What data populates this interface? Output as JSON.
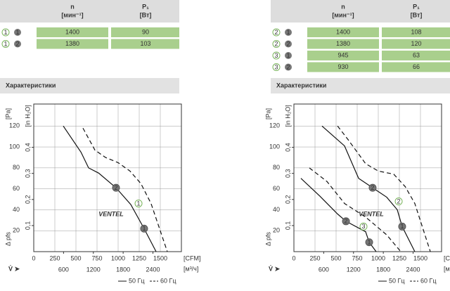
{
  "tables": [
    {
      "headers": [
        {
          "name": "n",
          "unit": "[мин⁻¹]"
        },
        {
          "name": "P₁",
          "unit": "[Вт]"
        }
      ],
      "rows": [
        {
          "mode": "1",
          "point": "1",
          "n": "1400",
          "p": "90"
        },
        {
          "mode": "1",
          "point": "2",
          "n": "1380",
          "p": "103"
        }
      ]
    },
    {
      "headers": [
        {
          "name": "n",
          "unit": "[мин⁻¹]"
        },
        {
          "name": "P₁",
          "unit": "[Вт]"
        }
      ],
      "rows": [
        {
          "mode": "2",
          "point": "1",
          "n": "1400",
          "p": "108"
        },
        {
          "mode": "2",
          "point": "2",
          "n": "1380",
          "p": "120"
        },
        {
          "mode": "3",
          "point": "1",
          "n": "945",
          "p": "63"
        },
        {
          "mode": "3",
          "point": "2",
          "n": "930",
          "p": "66"
        }
      ]
    }
  ],
  "sections": [
    "Характеристики",
    "Характеристики"
  ],
  "charts": [
    {
      "type": "line",
      "watermark": "VENTEL",
      "ylabel": "[Pa]",
      "y2label": "[in H₂O]",
      "pressure_label": "Δ pfs",
      "flow_label": "V̇ ➤",
      "xlabel": "[CFM]",
      "x2label": "[м³/ч]",
      "legend": [
        "50 Гц",
        "60 Гц"
      ],
      "xlim": [
        0,
        1750
      ],
      "xticks": [
        0,
        250,
        500,
        750,
        1000,
        1250,
        1500
      ],
      "x2lim": [
        0,
        2973
      ],
      "x2ticks": [
        600,
        1200,
        1800,
        2400
      ],
      "ylim": [
        0,
        141
      ],
      "yticks": [
        20,
        40,
        60,
        80,
        100,
        120
      ],
      "y2lim": [
        0,
        0.566
      ],
      "y2ticks": [
        {
          "value": 0.1,
          "label": "0,1"
        },
        {
          "value": 0.2,
          "label": "0,2"
        },
        {
          "value": 0.3,
          "label": "0,3"
        },
        {
          "value": 0.4,
          "label": "0,4"
        }
      ],
      "grid": true,
      "series": [
        {
          "style": "solid",
          "x": [
            350,
            560,
            650,
            770,
            975,
            1150,
            1308,
            1450
          ],
          "values": [
            120,
            95,
            80,
            75,
            61,
            45,
            22,
            0
          ]
        },
        {
          "style": "dashed",
          "x": [
            583,
            725,
            850,
            1000,
            1140,
            1270,
            1390,
            1583
          ],
          "values": [
            118,
            97,
            90,
            85,
            77,
            65,
            46,
            0
          ]
        }
      ],
      "markers": [
        {
          "label": "2",
          "x": 975,
          "y": 61,
          "green": false
        },
        {
          "label": "1",
          "x": 1308,
          "y": 22,
          "green": false
        },
        {
          "label": "1",
          "x": 1242,
          "y": 46,
          "green": true
        }
      ]
    },
    {
      "type": "line",
      "watermark": "VENTEL",
      "ylabel": "[Pa]",
      "y2label": "[in H₂O]",
      "pressure_label": "Δ pfs",
      "flow_label": "V̇ ➤",
      "xlabel": "[CFM]",
      "x2label": "[м³/ч]",
      "legend": [
        "50 Гц",
        "60 Гц"
      ],
      "xlim": [
        0,
        1750
      ],
      "xticks": [
        0,
        250,
        500,
        750,
        1000,
        1250,
        1500
      ],
      "x2lim": [
        0,
        2973
      ],
      "x2ticks": [
        600,
        1200,
        1800,
        2400
      ],
      "ylim": [
        0,
        141
      ],
      "yticks": [
        20,
        40,
        60,
        80,
        100,
        120
      ],
      "y2lim": [
        0,
        0.566
      ],
      "y2ticks": [
        {
          "value": 0.1,
          "label": "0,1"
        },
        {
          "value": 0.2,
          "label": "0,2"
        },
        {
          "value": 0.3,
          "label": "0,3"
        },
        {
          "value": 0.4,
          "label": "0,4"
        }
      ],
      "grid": true,
      "series": [
        {
          "style": "solid",
          "x": [
            333,
            600,
            767,
            933,
            1100,
            1225,
            1283,
            1433
          ],
          "values": [
            120,
            101,
            70,
            61,
            52,
            40,
            24,
            0
          ]
        },
        {
          "style": "dashed",
          "x": [
            517,
            642,
            850,
            1000,
            1183,
            1320,
            1433,
            1617
          ],
          "values": [
            120,
            107,
            84,
            77,
            74,
            62,
            46,
            0
          ]
        },
        {
          "style": "solid",
          "x": [
            83,
            308,
            517,
            617,
            850,
            892,
            975
          ],
          "values": [
            70,
            53,
            36,
            29,
            19,
            9,
            0
          ]
        },
        {
          "style": "dashed",
          "x": [
            183,
            392,
            600,
            850,
            1100,
            1267
          ],
          "values": [
            80,
            67,
            46,
            33,
            16,
            0
          ]
        }
      ],
      "markers": [
        {
          "label": "2",
          "x": 933,
          "y": 61,
          "green": false
        },
        {
          "label": "1",
          "x": 1283,
          "y": 24,
          "green": false
        },
        {
          "label": "2",
          "x": 617,
          "y": 29,
          "green": false
        },
        {
          "label": "1",
          "x": 892,
          "y": 9,
          "green": false
        },
        {
          "label": "2",
          "x": 1242,
          "y": 48,
          "green": true
        },
        {
          "label": "3",
          "x": 825,
          "y": 24,
          "green": true
        }
      ]
    }
  ]
}
